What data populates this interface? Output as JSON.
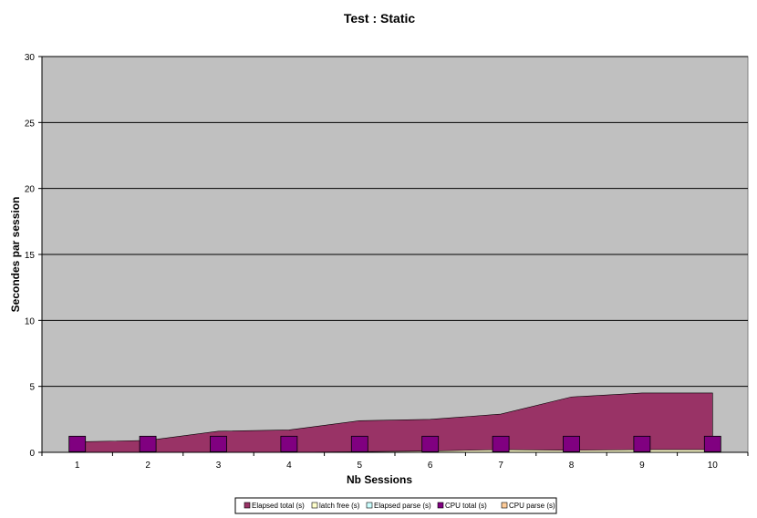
{
  "chart_data": {
    "type": "area",
    "title": "Test : Static",
    "xlabel": "Nb Sessions",
    "ylabel": "Secondes par session",
    "categories": [
      "1",
      "2",
      "3",
      "4",
      "5",
      "6",
      "7",
      "8",
      "9",
      "10"
    ],
    "ylim": [
      0,
      30
    ],
    "yticks": [
      "0",
      "5",
      "10",
      "15",
      "20",
      "25",
      "30"
    ],
    "ytick_values": [
      0,
      5,
      10,
      15,
      20,
      25,
      30
    ],
    "grid": true,
    "legend_position": "bottom",
    "series": [
      {
        "name": "Elapsed total (s)",
        "kind": "area",
        "color": "#993366",
        "values": [
          0.8,
          0.9,
          1.6,
          1.7,
          2.4,
          2.5,
          2.9,
          4.2,
          4.5,
          4.5
        ]
      },
      {
        "name": "latch free (s)",
        "kind": "area",
        "color": "#FFFFCC",
        "values": [
          0,
          0,
          0,
          0,
          0.05,
          0.1,
          0.2,
          0.15,
          0.2,
          0.2
        ]
      },
      {
        "name": "Elapsed parse (s)",
        "kind": "area",
        "color": "#CCFFFF",
        "values": [
          0,
          0,
          0,
          0,
          0,
          0,
          0,
          0,
          0,
          0
        ]
      },
      {
        "name": "CPU  total (s)",
        "kind": "marker",
        "color": "#800080",
        "values": [
          0.6,
          0.6,
          0.6,
          0.6,
          0.6,
          0.6,
          0.6,
          0.6,
          0.6,
          0.6
        ]
      },
      {
        "name": "CPU parse (s)",
        "kind": "area",
        "color": "#FFCC99",
        "values": [
          0,
          0,
          0,
          0,
          0,
          0,
          0,
          0,
          0,
          0
        ]
      }
    ],
    "colors": {
      "plot_bg": "#C0C0C0",
      "grid": "#000000"
    }
  }
}
